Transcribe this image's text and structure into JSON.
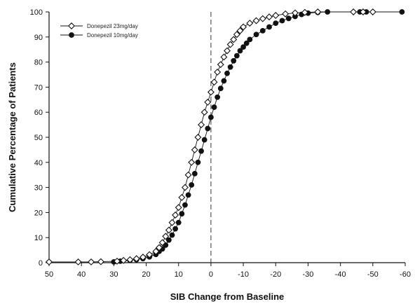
{
  "chart_data": {
    "type": "scatter",
    "title": "",
    "xlabel": "SIB Change from Baseline",
    "ylabel": "Cumulative Percentage of Patients",
    "xlim": [
      50,
      -60
    ],
    "ylim": [
      0,
      100
    ],
    "x_ticks": [
      50,
      40,
      30,
      20,
      10,
      0,
      -10,
      -20,
      -30,
      -40,
      -50,
      -60
    ],
    "x_tick_labels": [
      "50",
      "40",
      "30",
      "20",
      "10",
      "0",
      "-10",
      "-20",
      "-30",
      "-40",
      "-50",
      "-60"
    ],
    "y_ticks": [
      0,
      10,
      20,
      30,
      40,
      50,
      60,
      70,
      80,
      90,
      100
    ],
    "y_tick_labels": [
      "0",
      "10",
      "20",
      "30",
      "40",
      "50",
      "60",
      "70",
      "80",
      "90",
      "100"
    ],
    "reference_line_x": 0,
    "legend_position": "top-left",
    "series": [
      {
        "name": "Donepezil 23mg/day",
        "marker": "open-diamond",
        "color": "#111111",
        "points": [
          [
            50,
            0.3
          ],
          [
            41,
            0.3
          ],
          [
            37,
            0.3
          ],
          [
            34,
            0.4
          ],
          [
            29,
            0.6
          ],
          [
            27,
            0.9
          ],
          [
            25,
            1.2
          ],
          [
            23,
            1.6
          ],
          [
            21,
            2.2
          ],
          [
            19,
            3.2
          ],
          [
            17,
            4.5
          ],
          [
            16,
            6
          ],
          [
            15,
            8
          ],
          [
            14,
            10.5
          ],
          [
            13,
            13
          ],
          [
            12,
            16
          ],
          [
            11,
            19
          ],
          [
            10,
            22
          ],
          [
            9,
            26
          ],
          [
            8,
            30
          ],
          [
            7,
            35
          ],
          [
            6,
            40
          ],
          [
            5,
            45
          ],
          [
            4,
            50
          ],
          [
            3,
            55
          ],
          [
            2,
            60
          ],
          [
            1,
            64
          ],
          [
            0,
            68
          ],
          [
            -1,
            72
          ],
          [
            -2,
            76
          ],
          [
            -3,
            79
          ],
          [
            -4,
            82
          ],
          [
            -5,
            84.5
          ],
          [
            -6,
            87
          ],
          [
            -7,
            89
          ],
          [
            -8,
            91
          ],
          [
            -9,
            92.5
          ],
          [
            -10,
            94
          ],
          [
            -12,
            95.5
          ],
          [
            -14,
            96.5
          ],
          [
            -16,
            97.3
          ],
          [
            -18,
            98
          ],
          [
            -20,
            98.6
          ],
          [
            -23,
            99.2
          ],
          [
            -26,
            99.6
          ],
          [
            -29,
            99.8
          ],
          [
            -33,
            100
          ],
          [
            -44,
            100
          ],
          [
            -47,
            100
          ],
          [
            -50,
            100
          ]
        ]
      },
      {
        "name": "Donepezil 10mg/day",
        "marker": "filled-circle",
        "color": "#111111",
        "points": [
          [
            30,
            0.3
          ],
          [
            28,
            0.6
          ],
          [
            25,
            0.9
          ],
          [
            23,
            1.2
          ],
          [
            21,
            1.6
          ],
          [
            19,
            2.3
          ],
          [
            17,
            3.3
          ],
          [
            16,
            4.5
          ],
          [
            15,
            5.5
          ],
          [
            14,
            7
          ],
          [
            13,
            9
          ],
          [
            12,
            11
          ],
          [
            11,
            13.5
          ],
          [
            10,
            16
          ],
          [
            9,
            19.5
          ],
          [
            8,
            23
          ],
          [
            7,
            27
          ],
          [
            6,
            31
          ],
          [
            5,
            35.5
          ],
          [
            4,
            40
          ],
          [
            3,
            44.5
          ],
          [
            2,
            49
          ],
          [
            1,
            53.5
          ],
          [
            0,
            58
          ],
          [
            -1,
            62
          ],
          [
            -2,
            66
          ],
          [
            -3,
            69.5
          ],
          [
            -4,
            72.5
          ],
          [
            -5,
            75.5
          ],
          [
            -6,
            78
          ],
          [
            -7,
            80.5
          ],
          [
            -8,
            82.5
          ],
          [
            -9,
            84.5
          ],
          [
            -10,
            86
          ],
          [
            -11,
            87.5
          ],
          [
            -12,
            89
          ],
          [
            -14,
            91
          ],
          [
            -16,
            92.5
          ],
          [
            -18,
            94
          ],
          [
            -20,
            95.5
          ],
          [
            -22,
            96.5
          ],
          [
            -24,
            97.4
          ],
          [
            -26,
            98.2
          ],
          [
            -28,
            99
          ],
          [
            -30,
            99.5
          ],
          [
            -33,
            99.8
          ],
          [
            -36,
            100
          ],
          [
            -46,
            100
          ],
          [
            -48,
            100
          ],
          [
            -59,
            100
          ]
        ]
      }
    ]
  }
}
